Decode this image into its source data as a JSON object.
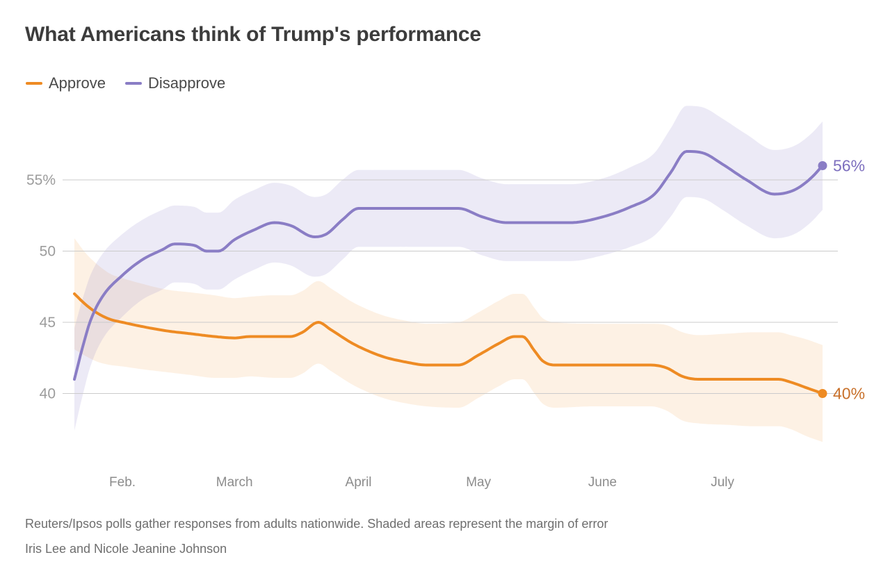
{
  "title": "What Americans think of Trump's performance",
  "legend": [
    {
      "label": "Approve",
      "color": "#ee8b23"
    },
    {
      "label": "Disapprove",
      "color": "#8a7dc5"
    }
  ],
  "footer": {
    "note": "Reuters/Ipsos polls gather responses from adults nationwide. Shaded areas represent the margin of error",
    "byline": "Iris Lee and Nicole Jeanine Johnson"
  },
  "chart_data": {
    "type": "line",
    "title": "What Americans think of Trump's performance",
    "x_unit": "days since Jan 20",
    "grid": true,
    "grid_color": "#cbcbcb",
    "band_note": "shaded areas are margin of error; width stored per point",
    "x_axis": {
      "months": [
        {
          "label": "Feb.",
          "day": 12
        },
        {
          "label": "March",
          "day": 40
        },
        {
          "label": "April",
          "day": 71
        },
        {
          "label": "May",
          "day": 101
        },
        {
          "label": "June",
          "day": 132
        },
        {
          "label": "July",
          "day": 162
        }
      ]
    },
    "y_axis": {
      "ticks": [
        {
          "value": 55,
          "label": "55%"
        },
        {
          "value": 50,
          "label": "50"
        },
        {
          "value": 45,
          "label": "45"
        },
        {
          "value": 40,
          "label": "40"
        }
      ],
      "range": [
        36,
        60
      ]
    },
    "series": [
      {
        "name": "Approve",
        "color": "#ee8b23",
        "label_color": "#c8702a",
        "band_opacity": 0.12,
        "end_label": "40%",
        "points": [
          [
            0,
            47,
            3.9
          ],
          [
            3,
            46.2,
            3.6
          ],
          [
            6,
            45.6,
            3.4
          ],
          [
            9,
            45.2,
            3.2
          ],
          [
            12,
            45,
            3.1
          ],
          [
            17,
            44.7,
            3.0
          ],
          [
            23,
            44.4,
            2.9
          ],
          [
            29,
            44.2,
            2.9
          ],
          [
            35,
            44,
            2.9
          ],
          [
            40,
            43.9,
            2.8
          ],
          [
            44,
            44,
            2.8
          ],
          [
            50,
            44,
            2.9
          ],
          [
            54,
            44,
            2.9
          ],
          [
            57,
            44.3,
            2.9
          ],
          [
            61,
            45,
            2.9
          ],
          [
            64,
            44.5,
            2.9
          ],
          [
            69,
            43.6,
            2.9
          ],
          [
            71,
            43.3,
            2.9
          ],
          [
            77,
            42.6,
            2.9
          ],
          [
            83,
            42.2,
            2.9
          ],
          [
            88,
            42,
            2.9
          ],
          [
            96,
            42,
            3.0
          ],
          [
            101,
            42.7,
            3.0
          ],
          [
            106,
            43.5,
            3.0
          ],
          [
            110,
            44,
            3.0
          ],
          [
            112,
            44,
            3.0
          ],
          [
            115,
            43,
            3.0
          ],
          [
            117,
            42.3,
            3.0
          ],
          [
            120,
            42,
            3.0
          ],
          [
            130,
            42,
            2.9
          ],
          [
            138,
            42,
            2.9
          ],
          [
            144,
            42,
            2.9
          ],
          [
            148,
            41.8,
            3.0
          ],
          [
            152,
            41.2,
            3.1
          ],
          [
            156,
            41,
            3.1
          ],
          [
            163,
            41,
            3.2
          ],
          [
            170,
            41,
            3.3
          ],
          [
            176,
            41,
            3.3
          ],
          [
            179,
            40.8,
            3.3
          ],
          [
            183,
            40.4,
            3.4
          ],
          [
            187,
            40,
            3.4
          ]
        ]
      },
      {
        "name": "Disapprove",
        "color": "#8a7dc5",
        "label_color": "#7d6fbe",
        "band_opacity": 0.16,
        "end_label": "56%",
        "points": [
          [
            0,
            41,
            3.6
          ],
          [
            2,
            43.2,
            3.4
          ],
          [
            4,
            45.1,
            3.2
          ],
          [
            7,
            46.8,
            3.0
          ],
          [
            12,
            48.3,
            2.9
          ],
          [
            17,
            49.4,
            2.8
          ],
          [
            22,
            50.1,
            2.8
          ],
          [
            25,
            50.5,
            2.7
          ],
          [
            30,
            50.4,
            2.7
          ],
          [
            33,
            50,
            2.7
          ],
          [
            36,
            50,
            2.7
          ],
          [
            40,
            50.8,
            2.8
          ],
          [
            45,
            51.5,
            2.8
          ],
          [
            50,
            52,
            2.8
          ],
          [
            54,
            51.8,
            2.8
          ],
          [
            60,
            51,
            2.8
          ],
          [
            63,
            51.2,
            2.8
          ],
          [
            67,
            52.2,
            2.8
          ],
          [
            71,
            53,
            2.7
          ],
          [
            80,
            53,
            2.7
          ],
          [
            90,
            53,
            2.7
          ],
          [
            96,
            53,
            2.7
          ],
          [
            102,
            52.4,
            2.7
          ],
          [
            108,
            52,
            2.7
          ],
          [
            117,
            52,
            2.7
          ],
          [
            124,
            52,
            2.7
          ],
          [
            132,
            52.4,
            2.7
          ],
          [
            139,
            53.1,
            2.8
          ],
          [
            145,
            54,
            2.9
          ],
          [
            149,
            55.5,
            3.1
          ],
          [
            153,
            57,
            3.2
          ],
          [
            157,
            56.9,
            3.2
          ],
          [
            162,
            56.1,
            3.2
          ],
          [
            168,
            55,
            3.2
          ],
          [
            175,
            54,
            3.1
          ],
          [
            180,
            54.3,
            3.1
          ],
          [
            184,
            55.1,
            3.1
          ],
          [
            187,
            56,
            3.1
          ]
        ]
      }
    ]
  }
}
